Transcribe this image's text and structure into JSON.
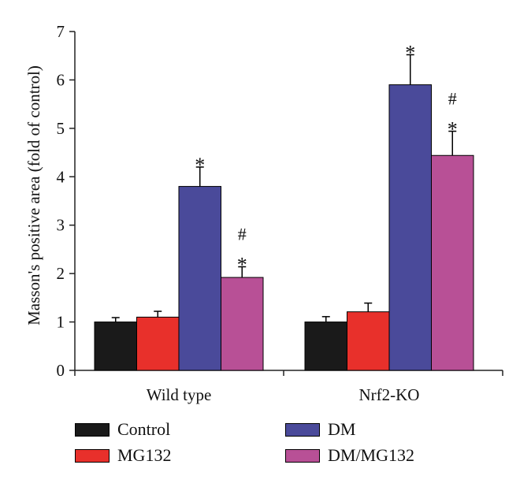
{
  "chart_data": {
    "type": "bar",
    "categories": [
      "Wild type",
      "Nrf2-KO"
    ],
    "ylabel": "Masson's positive area (fold of control)",
    "xlabel": "",
    "ylim": [
      0,
      7
    ],
    "yticks": [
      "0",
      "1",
      "2",
      "3",
      "4",
      "5",
      "6",
      "7"
    ],
    "grid": false,
    "legend_position": "bottom",
    "series": [
      {
        "name": "Control",
        "color": "#1a1a1a",
        "values": [
          1.0,
          1.0
        ],
        "errors": [
          0.09,
          0.11
        ],
        "annotations": [
          "",
          ""
        ]
      },
      {
        "name": "MG132",
        "color": "#e8302b",
        "values": [
          1.1,
          1.21
        ],
        "errors": [
          0.12,
          0.18
        ],
        "annotations": [
          "",
          ""
        ]
      },
      {
        "name": "DM",
        "color": "#4a4a9a",
        "values": [
          3.8,
          5.9
        ],
        "errors": [
          0.4,
          0.62
        ],
        "annotations": [
          "*",
          "*"
        ]
      },
      {
        "name": "DM/MG132",
        "color": "#b85096",
        "values": [
          1.92,
          4.44
        ],
        "errors": [
          0.22,
          0.5
        ],
        "annotations": [
          "#\n*",
          "#\n*"
        ]
      }
    ]
  }
}
